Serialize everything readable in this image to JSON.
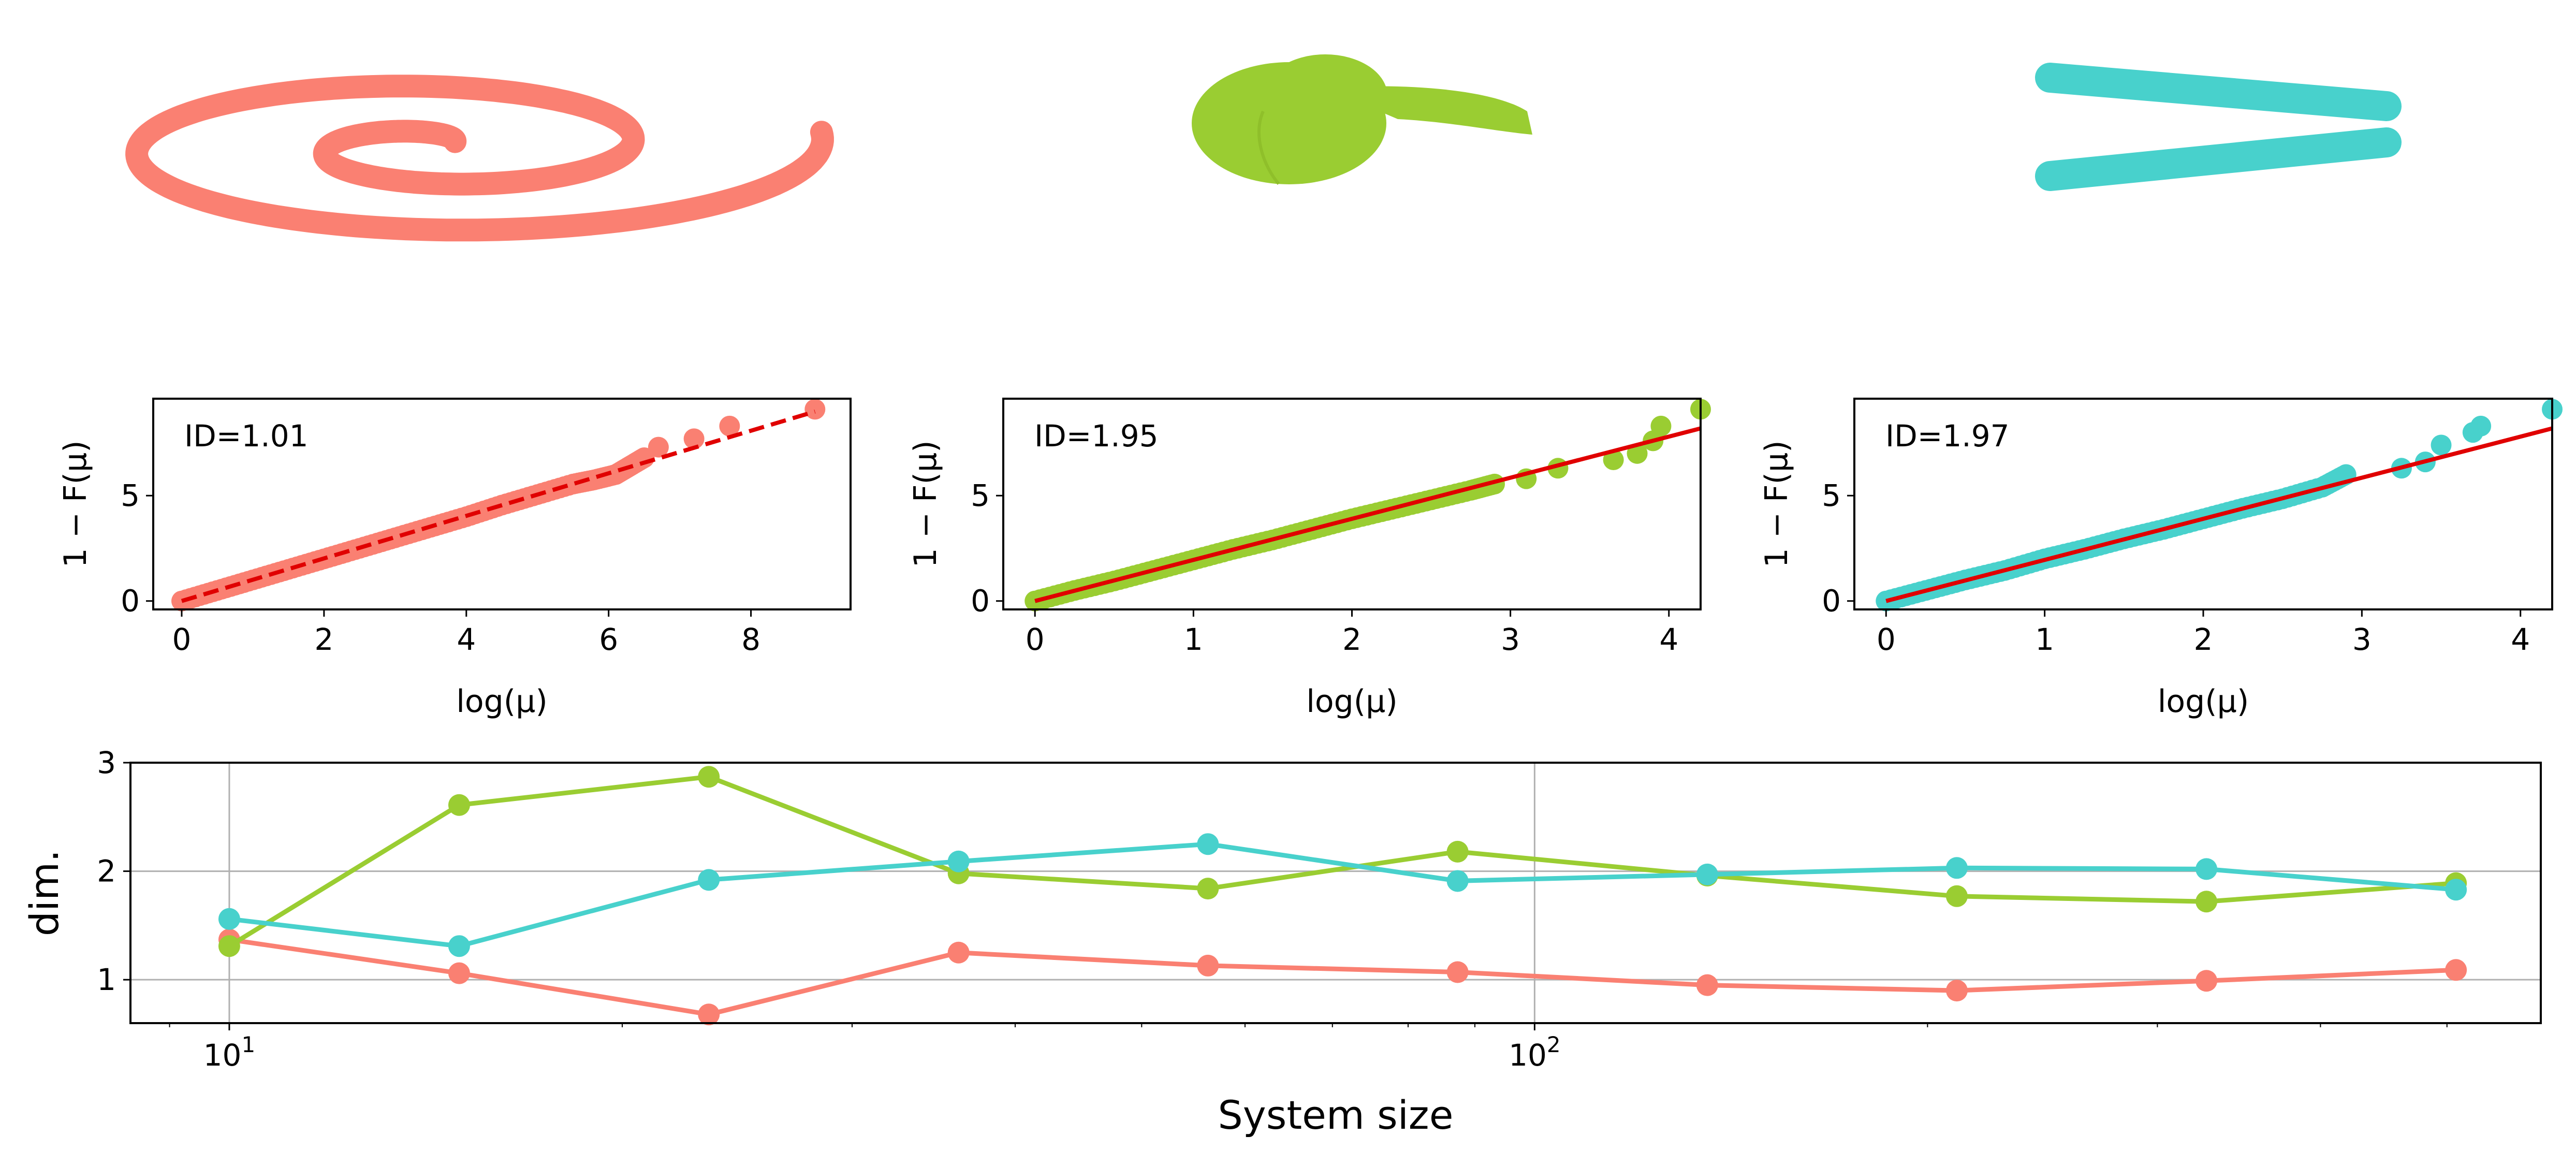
{
  "chart_data": [
    {
      "type": "scatter",
      "panel": "shape-1-spiral",
      "color": "#fa8072",
      "shape": "spiral"
    },
    {
      "type": "scatter",
      "panel": "shape-2-roll",
      "color": "#9acd32",
      "shape": "roll"
    },
    {
      "type": "scatter",
      "panel": "shape-3-wedge",
      "color": "#48d1cc",
      "shape": "wedge"
    },
    {
      "type": "scatter",
      "panel": "fit-1",
      "annotation": "ID=1.01",
      "xlabel": "log(μ)",
      "ylabel": "1 − F(μ)",
      "xlim": [
        -0.4,
        9.4
      ],
      "ylim": [
        -0.4,
        9.6
      ],
      "xticks": [
        "0",
        "2",
        "4",
        "6",
        "8"
      ],
      "yticks": [
        "0",
        "5"
      ],
      "color": "#fa8072",
      "fit_line": {
        "slope": 1.01,
        "style": "dashed",
        "color": "#e00000",
        "x": [
          0,
          8.9
        ]
      },
      "points": [
        [
          0,
          0
        ],
        [
          0.5,
          0.5
        ],
        [
          1,
          1.0
        ],
        [
          1.5,
          1.5
        ],
        [
          2,
          2.0
        ],
        [
          2.5,
          2.5
        ],
        [
          3,
          3.0
        ],
        [
          3.5,
          3.5
        ],
        [
          4,
          4.0
        ],
        [
          4.5,
          4.55
        ],
        [
          5,
          5.05
        ],
        [
          5.5,
          5.55
        ],
        [
          5.8,
          5.75
        ],
        [
          6.1,
          6.0
        ],
        [
          6.3,
          6.4
        ],
        [
          6.5,
          6.8
        ],
        [
          6.7,
          7.3
        ],
        [
          7.2,
          7.7
        ],
        [
          7.7,
          8.3
        ],
        [
          8.9,
          9.1
        ]
      ]
    },
    {
      "type": "scatter",
      "panel": "fit-2",
      "annotation": "ID=1.95",
      "xlabel": "log(μ)",
      "ylabel": "1 − F(μ)",
      "xlim": [
        -0.2,
        4.2
      ],
      "ylim": [
        -0.4,
        9.6
      ],
      "xticks": [
        "0",
        "1",
        "2",
        "3",
        "4"
      ],
      "yticks": [
        "0",
        "5"
      ],
      "color": "#9acd32",
      "fit_line": {
        "slope": 1.95,
        "style": "solid",
        "color": "#e00000",
        "x": [
          0,
          4.2
        ]
      },
      "points": [
        [
          0,
          0
        ],
        [
          0.25,
          0.5
        ],
        [
          0.5,
          0.95
        ],
        [
          0.75,
          1.45
        ],
        [
          1,
          1.95
        ],
        [
          1.25,
          2.45
        ],
        [
          1.5,
          2.9
        ],
        [
          1.75,
          3.4
        ],
        [
          2,
          3.9
        ],
        [
          2.25,
          4.35
        ],
        [
          2.5,
          4.8
        ],
        [
          2.75,
          5.25
        ],
        [
          2.9,
          5.55
        ],
        [
          3.1,
          5.8
        ],
        [
          3.3,
          6.3
        ],
        [
          3.65,
          6.7
        ],
        [
          3.8,
          7.0
        ],
        [
          3.9,
          7.6
        ],
        [
          3.95,
          8.3
        ],
        [
          4.2,
          9.1
        ]
      ]
    },
    {
      "type": "scatter",
      "panel": "fit-3",
      "annotation": "ID=1.97",
      "xlabel": "log(μ)",
      "ylabel": "1 − F(μ)",
      "xlim": [
        -0.2,
        4.2
      ],
      "ylim": [
        -0.4,
        9.6
      ],
      "xticks": [
        "0",
        "1",
        "2",
        "3",
        "4"
      ],
      "yticks": [
        "0",
        "5"
      ],
      "color": "#48d1cc",
      "fit_line": {
        "slope": 1.97,
        "style": "solid",
        "color": "#e00000",
        "x": [
          0,
          4.2
        ]
      },
      "points": [
        [
          0,
          0
        ],
        [
          0.25,
          0.5
        ],
        [
          0.5,
          1.0
        ],
        [
          0.75,
          1.45
        ],
        [
          1,
          2.0
        ],
        [
          1.25,
          2.45
        ],
        [
          1.5,
          2.95
        ],
        [
          1.75,
          3.4
        ],
        [
          2,
          3.9
        ],
        [
          2.25,
          4.4
        ],
        [
          2.5,
          4.85
        ],
        [
          2.75,
          5.4
        ],
        [
          2.9,
          6.0
        ],
        [
          3.25,
          6.3
        ],
        [
          3.4,
          6.6
        ],
        [
          3.5,
          7.4
        ],
        [
          3.7,
          8.0
        ],
        [
          3.75,
          8.3
        ],
        [
          4.2,
          9.1
        ]
      ]
    },
    {
      "type": "line",
      "panel": "dimension-vs-size",
      "xlabel": "System size",
      "ylabel": "dim.",
      "xscale": "log",
      "xlim": [
        8.4,
        590
      ],
      "ylim": [
        0.6,
        3.0
      ],
      "yticks": [
        "1",
        "2",
        "3"
      ],
      "xticks": [
        {
          "value": 10,
          "base": "10",
          "exp": "1"
        },
        {
          "value": 100,
          "base": "10",
          "exp": "2"
        }
      ],
      "grid": true,
      "x": [
        10,
        15,
        23.3,
        36.2,
        56.2,
        87.3,
        135.6,
        210.6,
        327.1,
        508
      ],
      "series": [
        {
          "color": "#fa8072",
          "values": [
            1.37,
            1.06,
            0.68,
            1.25,
            1.13,
            1.07,
            0.95,
            0.9,
            0.99,
            1.09
          ]
        },
        {
          "color": "#9acd32",
          "values": [
            1.31,
            2.61,
            2.87,
            1.98,
            1.84,
            2.18,
            1.96,
            1.77,
            1.72,
            1.89
          ]
        },
        {
          "color": "#48d1cc",
          "values": [
            1.56,
            1.31,
            1.92,
            2.09,
            2.25,
            1.91,
            1.97,
            2.03,
            2.02,
            1.83
          ]
        }
      ]
    }
  ]
}
